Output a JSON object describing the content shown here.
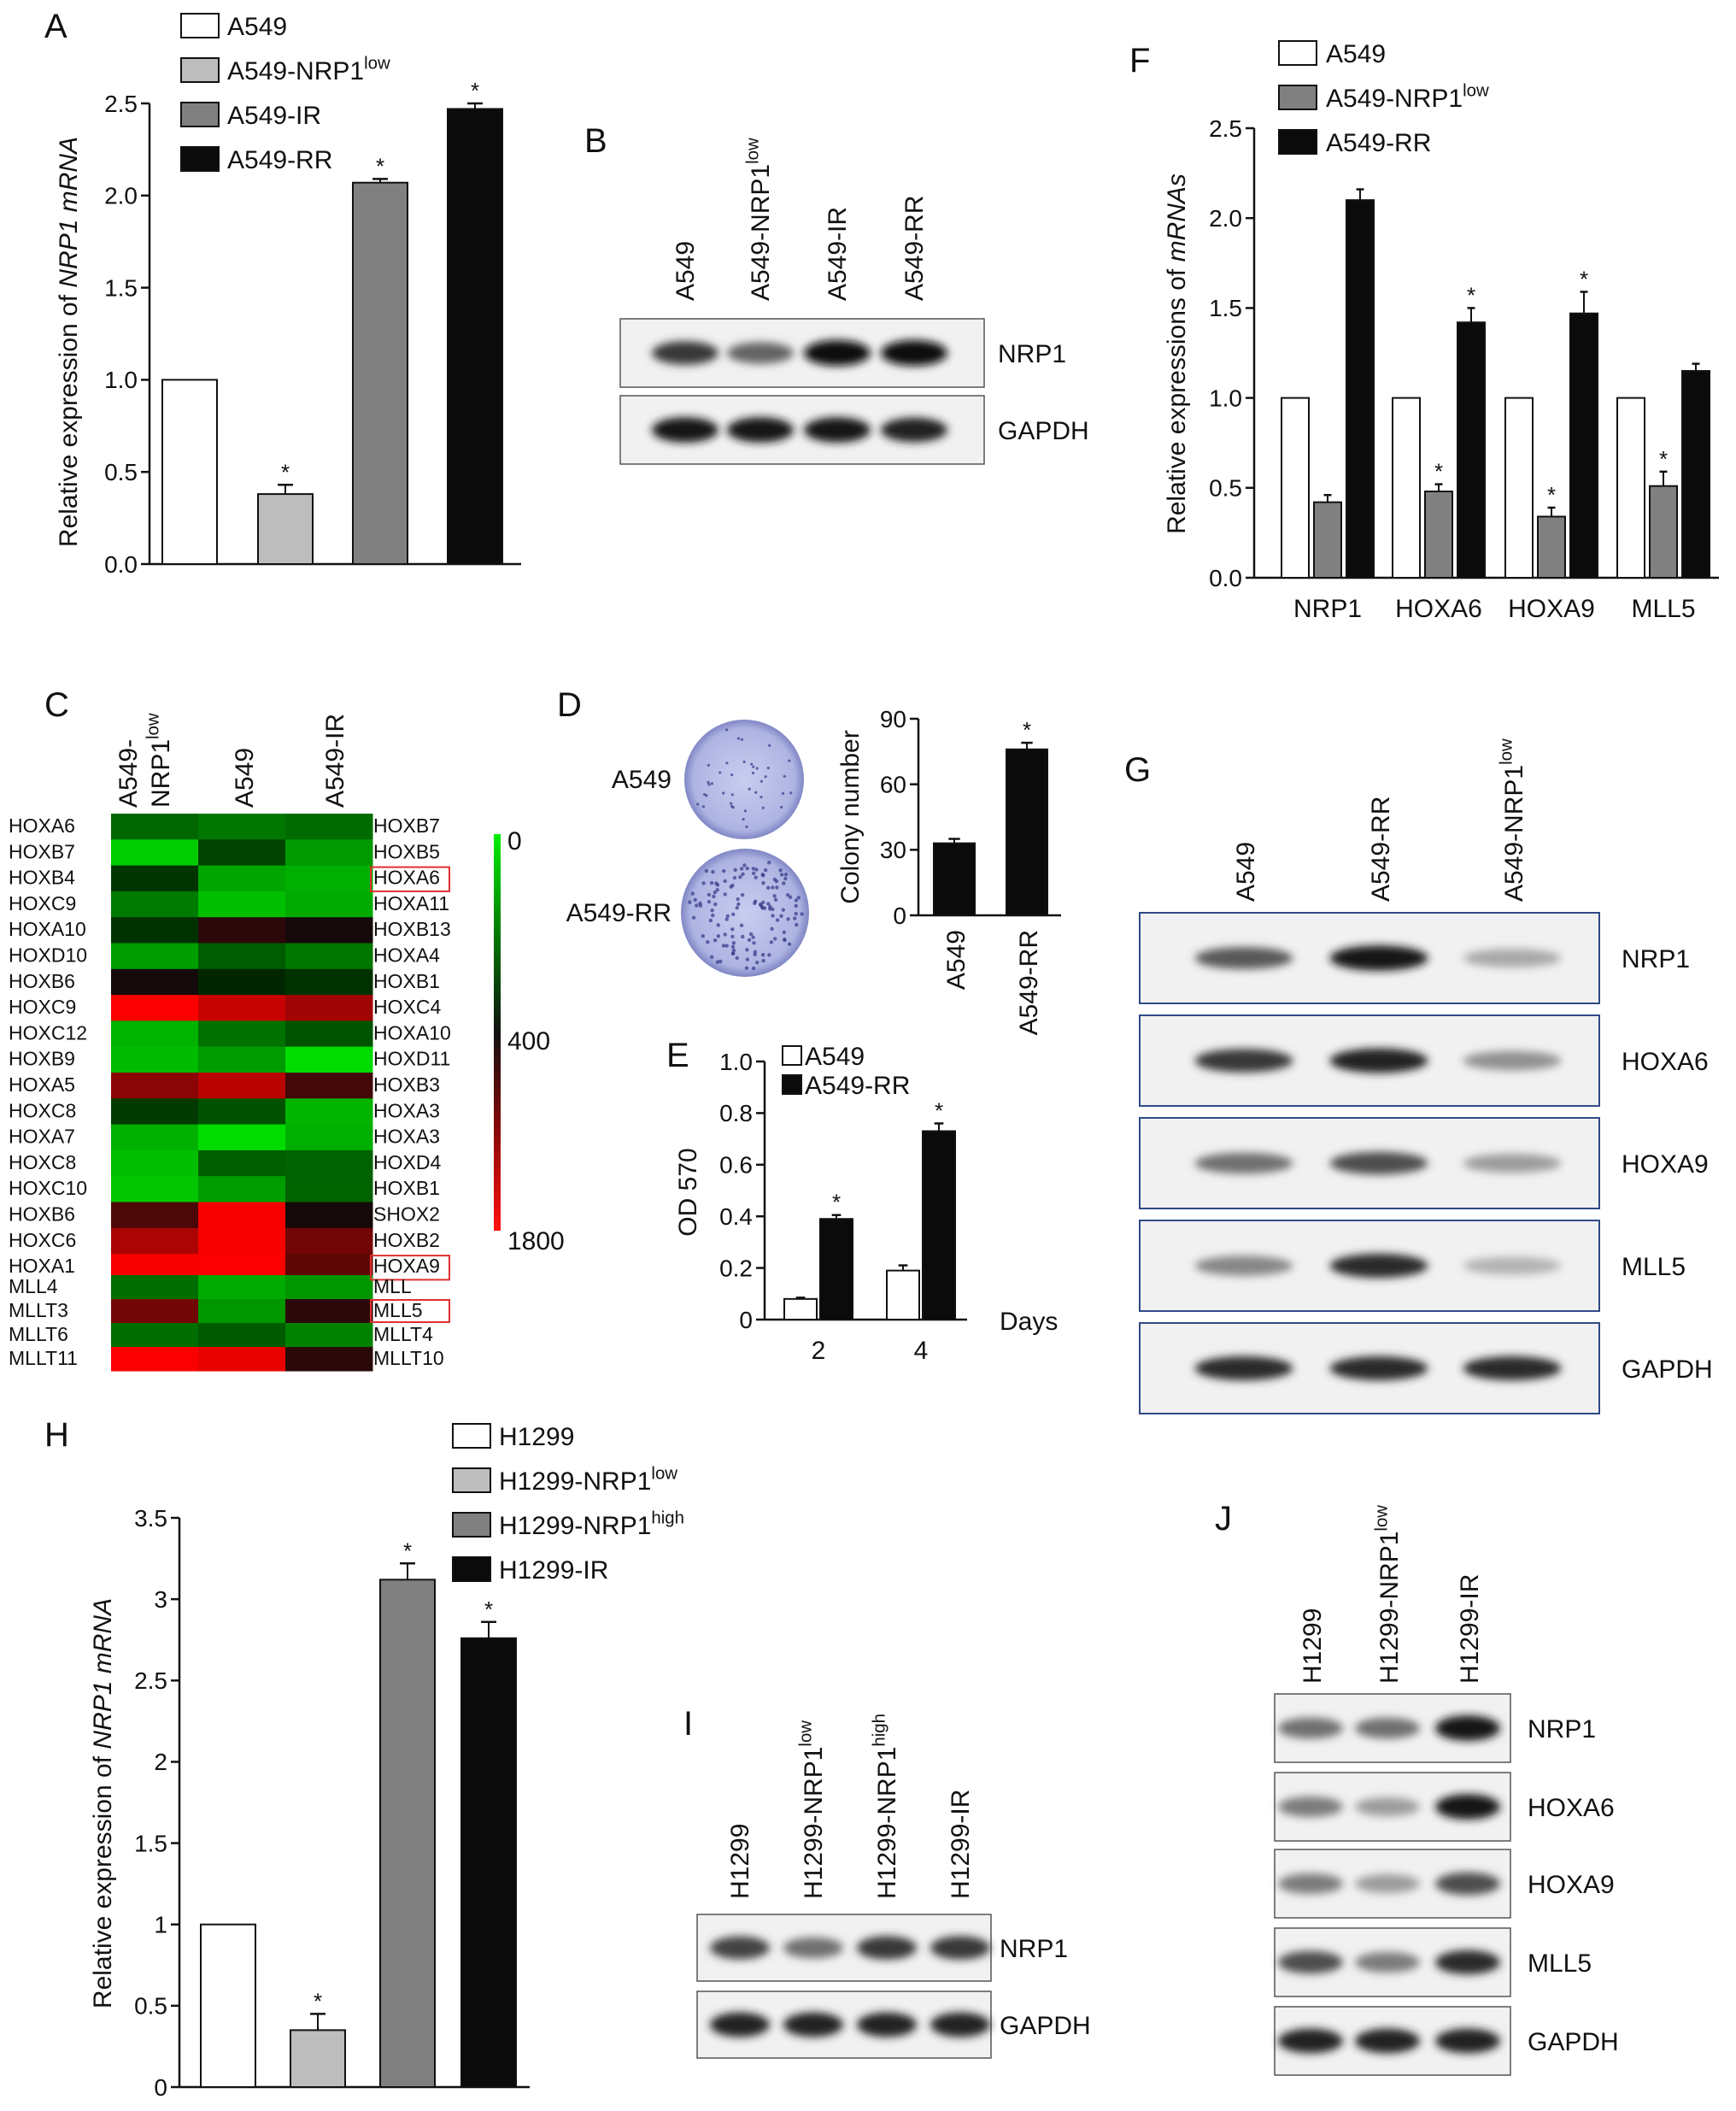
{
  "colors": {
    "white": "#ffffff",
    "light_gray": "#bdbdbd",
    "dark_gray": "#808080",
    "black": "#0b0b0b",
    "heat_low": "#00ee00",
    "heat_mid": "#111111",
    "heat_high": "#ff1010",
    "plate": "#b9bfe8",
    "blot_bg": "#f1f1f1"
  },
  "panels": {
    "A": {
      "letter": "A",
      "chart_data": {
        "type": "bar",
        "categories": [
          "A549",
          "A549-NRP1low",
          "A549-IR",
          "A549-RR"
        ],
        "values": [
          1.0,
          0.38,
          2.07,
          2.47
        ],
        "errors": [
          0,
          0.05,
          0.02,
          0.03
        ],
        "significant": [
          false,
          true,
          true,
          true
        ],
        "ylim": [
          0,
          2.5
        ],
        "yticks": [
          "0.0",
          "0.5",
          "1.0",
          "1.5",
          "2.0",
          "2.5"
        ],
        "ylabel_prefix": "Relative expression of ",
        "ylabel_italic": "NRP1 mRNA",
        "legend": [
          {
            "name": "A549",
            "sup": ""
          },
          {
            "name": "A549-NRP1",
            "sup": "low"
          },
          {
            "name": "A549-IR",
            "sup": ""
          },
          {
            "name": "A549-RR",
            "sup": ""
          }
        ]
      }
    },
    "B": {
      "letter": "B",
      "lanes": [
        {
          "name": "A549",
          "sup": ""
        },
        {
          "name": "A549-NRP1",
          "sup": "low"
        },
        {
          "name": "A549-IR",
          "sup": ""
        },
        {
          "name": "A549-RR",
          "sup": ""
        }
      ],
      "blots": [
        {
          "label": "NRP1",
          "intensity": [
            0.8,
            0.6,
            1.0,
            1.0
          ]
        },
        {
          "label": "GAPDH",
          "intensity": [
            0.95,
            0.95,
            0.95,
            0.9
          ]
        }
      ]
    },
    "C": {
      "letter": "C",
      "columns": [
        {
          "line1": "A549-",
          "line2": "NRP1",
          "sup": "low"
        },
        {
          "line1": "A549",
          "line2": "",
          "sup": ""
        },
        {
          "line1": "A549-IR",
          "line2": "",
          "sup": ""
        }
      ],
      "left_genes_top": [
        "HOXA6",
        "HOXB7",
        "HOXB4",
        "HOXC9",
        "HOXA10",
        "HOXD10",
        "HOXB6",
        "HOXC9",
        "HOXC12",
        "HOXB9",
        "HOXA5",
        "HOXC8",
        "HOXA7",
        "HOXC8",
        "HOXC10",
        "HOXB6",
        "HOXC6",
        "HOXA1"
      ],
      "right_genes_top": [
        "HOXB7",
        "HOXB5",
        "HOXA6",
        "HOXA11",
        "HOXB13",
        "HOXA4",
        "HOXB1",
        "HOXC4",
        "HOXA10",
        "HOXD11",
        "HOXB3",
        "HOXA3",
        "HOXA3",
        "HOXD4",
        "HOXB1",
        "SHOX2",
        "HOXB2",
        "HOXA9"
      ],
      "left_genes_bottom": [
        "MLL4",
        "MLLT3",
        "MLLT6",
        "MLLT11"
      ],
      "right_genes_bottom": [
        "MLL",
        "MLL5",
        "MLLT4",
        "MLLT10"
      ],
      "highlighted": [
        "HOXA6",
        "HOXA9",
        "MLL5"
      ],
      "scale_ticks": [
        "0",
        "400",
        "1800"
      ]
    },
    "D": {
      "letter": "D",
      "plates": [
        "A549",
        "A549-RR"
      ],
      "chart_data": {
        "type": "bar",
        "categories": [
          "A549",
          "A549-RR"
        ],
        "values": [
          33,
          76
        ],
        "errors": [
          2,
          3
        ],
        "significant": [
          false,
          true
        ],
        "ylim": [
          0,
          90
        ],
        "yticks": [
          "0",
          "30",
          "60",
          "90"
        ],
        "ylabel": "Colony number"
      }
    },
    "E": {
      "letter": "E",
      "chart_data": {
        "type": "bar",
        "categories": [
          "2",
          "4"
        ],
        "series": [
          {
            "name": "A549",
            "values": [
              0.08,
              0.19
            ],
            "errors": [
              0.005,
              0.02
            ],
            "significant": [
              false,
              false
            ]
          },
          {
            "name": "A549-RR",
            "values": [
              0.39,
              0.73
            ],
            "errors": [
              0.015,
              0.03
            ],
            "significant": [
              true,
              true
            ]
          }
        ],
        "ylim": [
          0,
          1.0
        ],
        "yticks": [
          "0",
          "0.2",
          "0.4",
          "0.6",
          "0.8",
          "1.0"
        ],
        "ylabel": "OD 570",
        "xlabel": "Days"
      }
    },
    "F": {
      "letter": "F",
      "chart_data": {
        "type": "bar",
        "categories": [
          "NRP1",
          "HOXA6",
          "HOXA9",
          "MLL5"
        ],
        "series": [
          {
            "name": "A549",
            "sup": "",
            "values": [
              1.0,
              1.0,
              1.0,
              1.0
            ],
            "errors": [
              0,
              0,
              0,
              0
            ],
            "significant": [
              false,
              false,
              false,
              false
            ]
          },
          {
            "name": "A549-NRP1",
            "sup": "low",
            "values": [
              0.42,
              0.48,
              0.34,
              0.51
            ],
            "errors": [
              0.04,
              0.04,
              0.05,
              0.08
            ],
            "significant": [
              false,
              true,
              true,
              true
            ]
          },
          {
            "name": "A549-RR",
            "sup": "",
            "values": [
              2.1,
              1.42,
              1.47,
              1.15
            ],
            "errors": [
              0.06,
              0.08,
              0.12,
              0.04
            ],
            "significant": [
              false,
              true,
              true,
              false
            ]
          }
        ],
        "ylim": [
          0,
          2.5
        ],
        "yticks": [
          "0.0",
          "0.5",
          "1.0",
          "1.5",
          "2.0",
          "2.5"
        ],
        "ylabel_prefix": "Relative expressions of ",
        "ylabel_italic": "mRNAs"
      }
    },
    "G": {
      "letter": "G",
      "lanes": [
        {
          "name": "A549",
          "sup": ""
        },
        {
          "name": "A549-RR",
          "sup": ""
        },
        {
          "name": "A549-NRP1",
          "sup": "low"
        }
      ],
      "blots": [
        {
          "label": "NRP1",
          "intensity": [
            0.65,
            0.95,
            0.3
          ]
        },
        {
          "label": "HOXA6",
          "intensity": [
            0.8,
            0.9,
            0.4
          ]
        },
        {
          "label": "HOXA9",
          "intensity": [
            0.55,
            0.7,
            0.35
          ]
        },
        {
          "label": "MLL5",
          "intensity": [
            0.45,
            0.85,
            0.25
          ]
        },
        {
          "label": "GAPDH",
          "intensity": [
            0.85,
            0.85,
            0.85
          ]
        }
      ]
    },
    "H": {
      "letter": "H",
      "chart_data": {
        "type": "bar",
        "categories": [
          "H1299",
          "H1299-NRP1low",
          "H1299-NRP1high",
          "H1299-IR"
        ],
        "values": [
          1.0,
          0.35,
          3.12,
          2.76
        ],
        "errors": [
          0,
          0.1,
          0.1,
          0.1
        ],
        "significant": [
          false,
          true,
          true,
          true
        ],
        "ylim": [
          0,
          3.5
        ],
        "yticks": [
          "0",
          "0.5",
          "1",
          "1.5",
          "2",
          "2.5",
          "3",
          "3.5"
        ],
        "ylabel_prefix": "Relative expression of ",
        "ylabel_italic": "NRP1 mRNA",
        "legend": [
          {
            "name": "H1299",
            "sup": ""
          },
          {
            "name": "H1299-NRP1",
            "sup": "low"
          },
          {
            "name": "H1299-NRP1",
            "sup": "high"
          },
          {
            "name": "H1299-IR",
            "sup": ""
          }
        ]
      }
    },
    "I": {
      "letter": "I",
      "lanes": [
        {
          "name": "H1299",
          "sup": ""
        },
        {
          "name": "H1299-NRP1",
          "sup": "low"
        },
        {
          "name": "H1299-NRP1",
          "sup": "high"
        },
        {
          "name": "H1299-IR",
          "sup": ""
        }
      ],
      "blots": [
        {
          "label": "NRP1",
          "intensity": [
            0.75,
            0.55,
            0.8,
            0.8
          ]
        },
        {
          "label": "GAPDH",
          "intensity": [
            0.9,
            0.9,
            0.9,
            0.9
          ]
        }
      ]
    },
    "J": {
      "letter": "J",
      "lanes": [
        {
          "name": "H1299",
          "sup": ""
        },
        {
          "name": "H1299-NRP1",
          "sup": "low"
        },
        {
          "name": "H1299-IR",
          "sup": ""
        }
      ],
      "blots": [
        {
          "label": "NRP1",
          "intensity": [
            0.55,
            0.55,
            0.95
          ]
        },
        {
          "label": "HOXA6",
          "intensity": [
            0.5,
            0.35,
            0.95
          ]
        },
        {
          "label": "HOXA9",
          "intensity": [
            0.5,
            0.35,
            0.7
          ]
        },
        {
          "label": "MLL5",
          "intensity": [
            0.7,
            0.5,
            0.85
          ]
        },
        {
          "label": "GAPDH",
          "intensity": [
            0.9,
            0.9,
            0.9
          ]
        }
      ]
    }
  }
}
